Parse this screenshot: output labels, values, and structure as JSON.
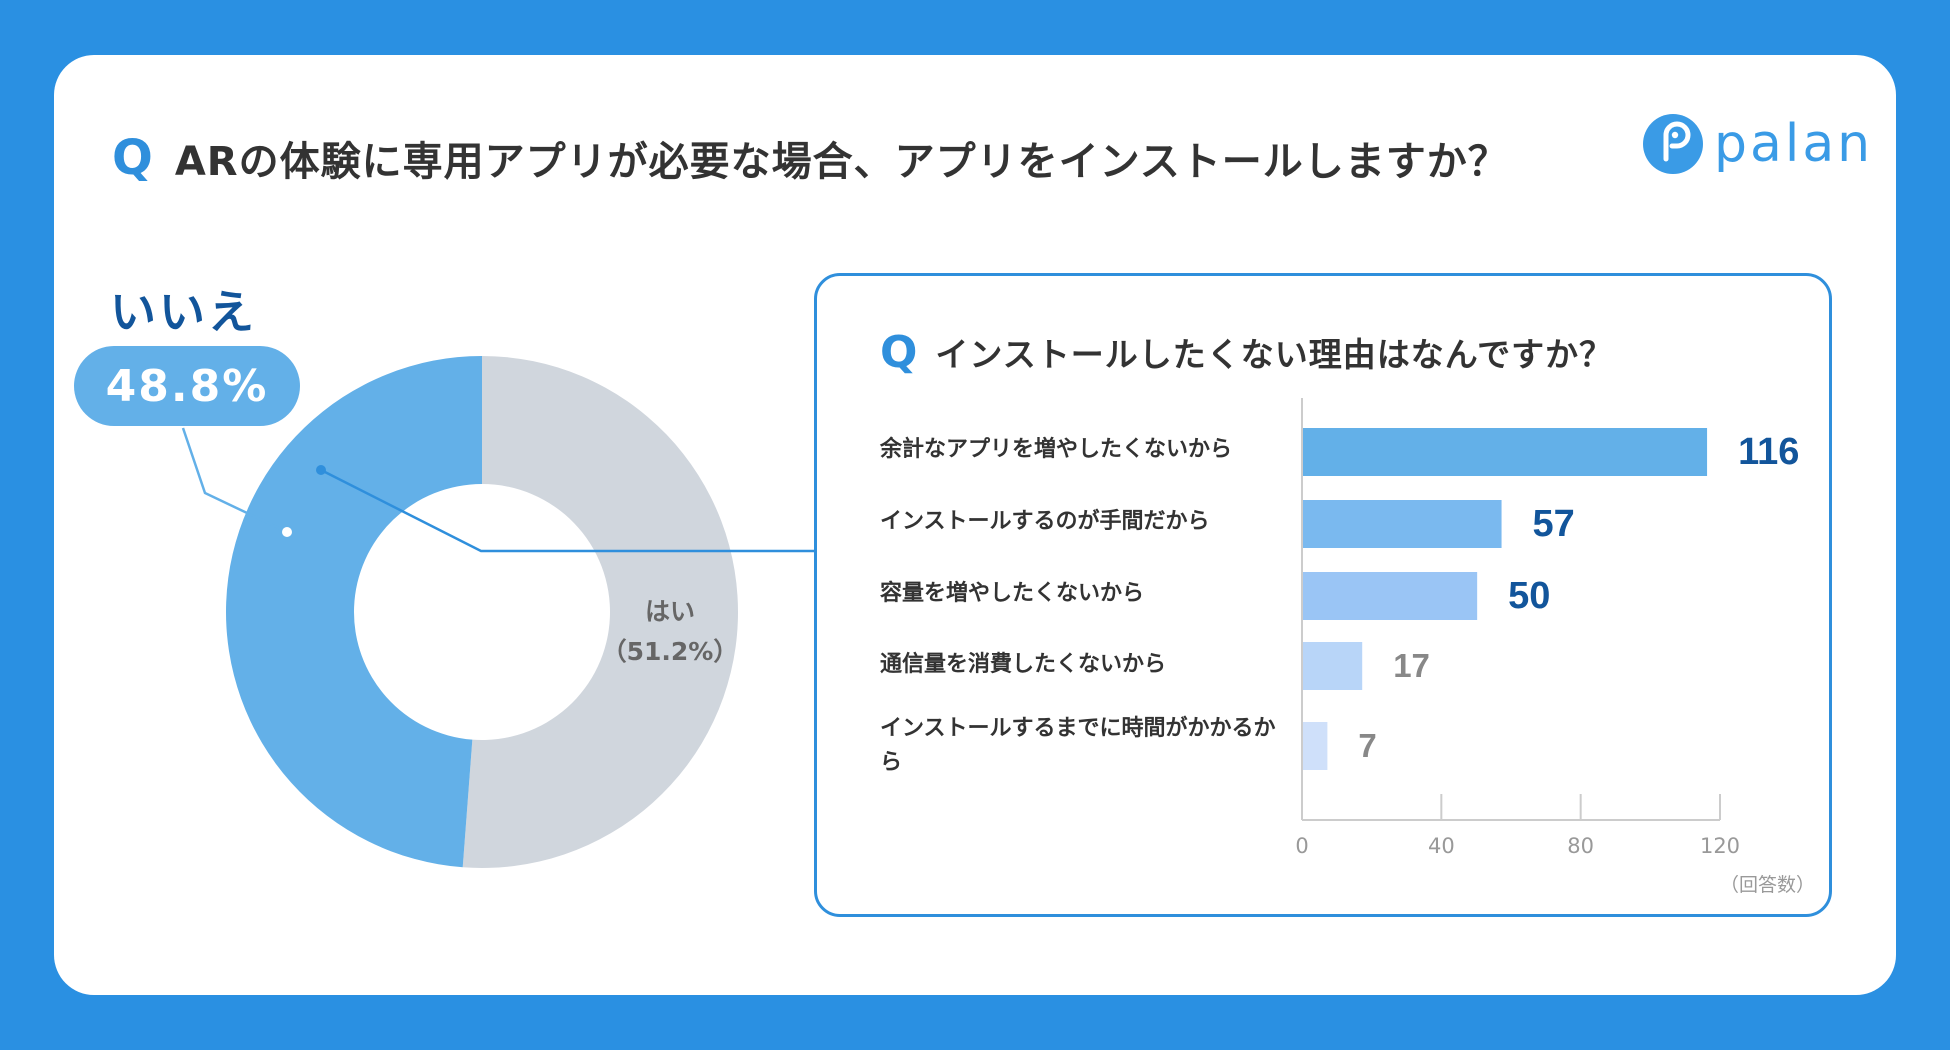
{
  "main_question": {
    "mark": "Q",
    "text": "ARの体験に専用アプリが必要な場合、アプリをインストールしますか？"
  },
  "logo": {
    "text": "palan"
  },
  "donut": {
    "no_label": "いいえ",
    "no_percent": "48.8%",
    "yes_label": "はい",
    "yes_percent": "（51.2%）"
  },
  "sub_question": {
    "mark": "Q",
    "text": "インストールしたくない理由はなんですか？"
  },
  "x_unit": "（回答数）",
  "colors": {
    "background": "#2a90e2",
    "accent": "#2f8fdc",
    "no_slice": "#63b0e8",
    "yes_slice": "#d0d6dd",
    "value_strong": "#12559b",
    "value_muted": "#888888"
  },
  "chart_data": [
    {
      "type": "pie",
      "title": "ARの体験に専用アプリが必要な場合、アプリをインストールしますか？",
      "slices": [
        {
          "label": "はい",
          "value": 51.2,
          "color": "#d0d6dd"
        },
        {
          "label": "いいえ",
          "value": 48.8,
          "color": "#63b0e8"
        }
      ]
    },
    {
      "type": "bar",
      "orientation": "horizontal",
      "title": "インストールしたくない理由はなんですか？",
      "categories": [
        "余計なアプリを増やしたくないから",
        "インストールするのが手間だから",
        "容量を増やしたくないから",
        "通信量を消費したくないから",
        "インストールするまでに時間がかかるから"
      ],
      "values": [
        116,
        57,
        50,
        17,
        7
      ],
      "value_labels": [
        "116",
        "57",
        "50",
        "17",
        "7"
      ],
      "bar_colors": [
        "#63b0e8",
        "#7ab9ef",
        "#9ac5f5",
        "#b8d5f8",
        "#cfe0fa"
      ],
      "xlabel": "（回答数）",
      "xticks": [
        "0",
        "40",
        "80",
        "120"
      ],
      "xlim": [
        0,
        120
      ]
    }
  ]
}
